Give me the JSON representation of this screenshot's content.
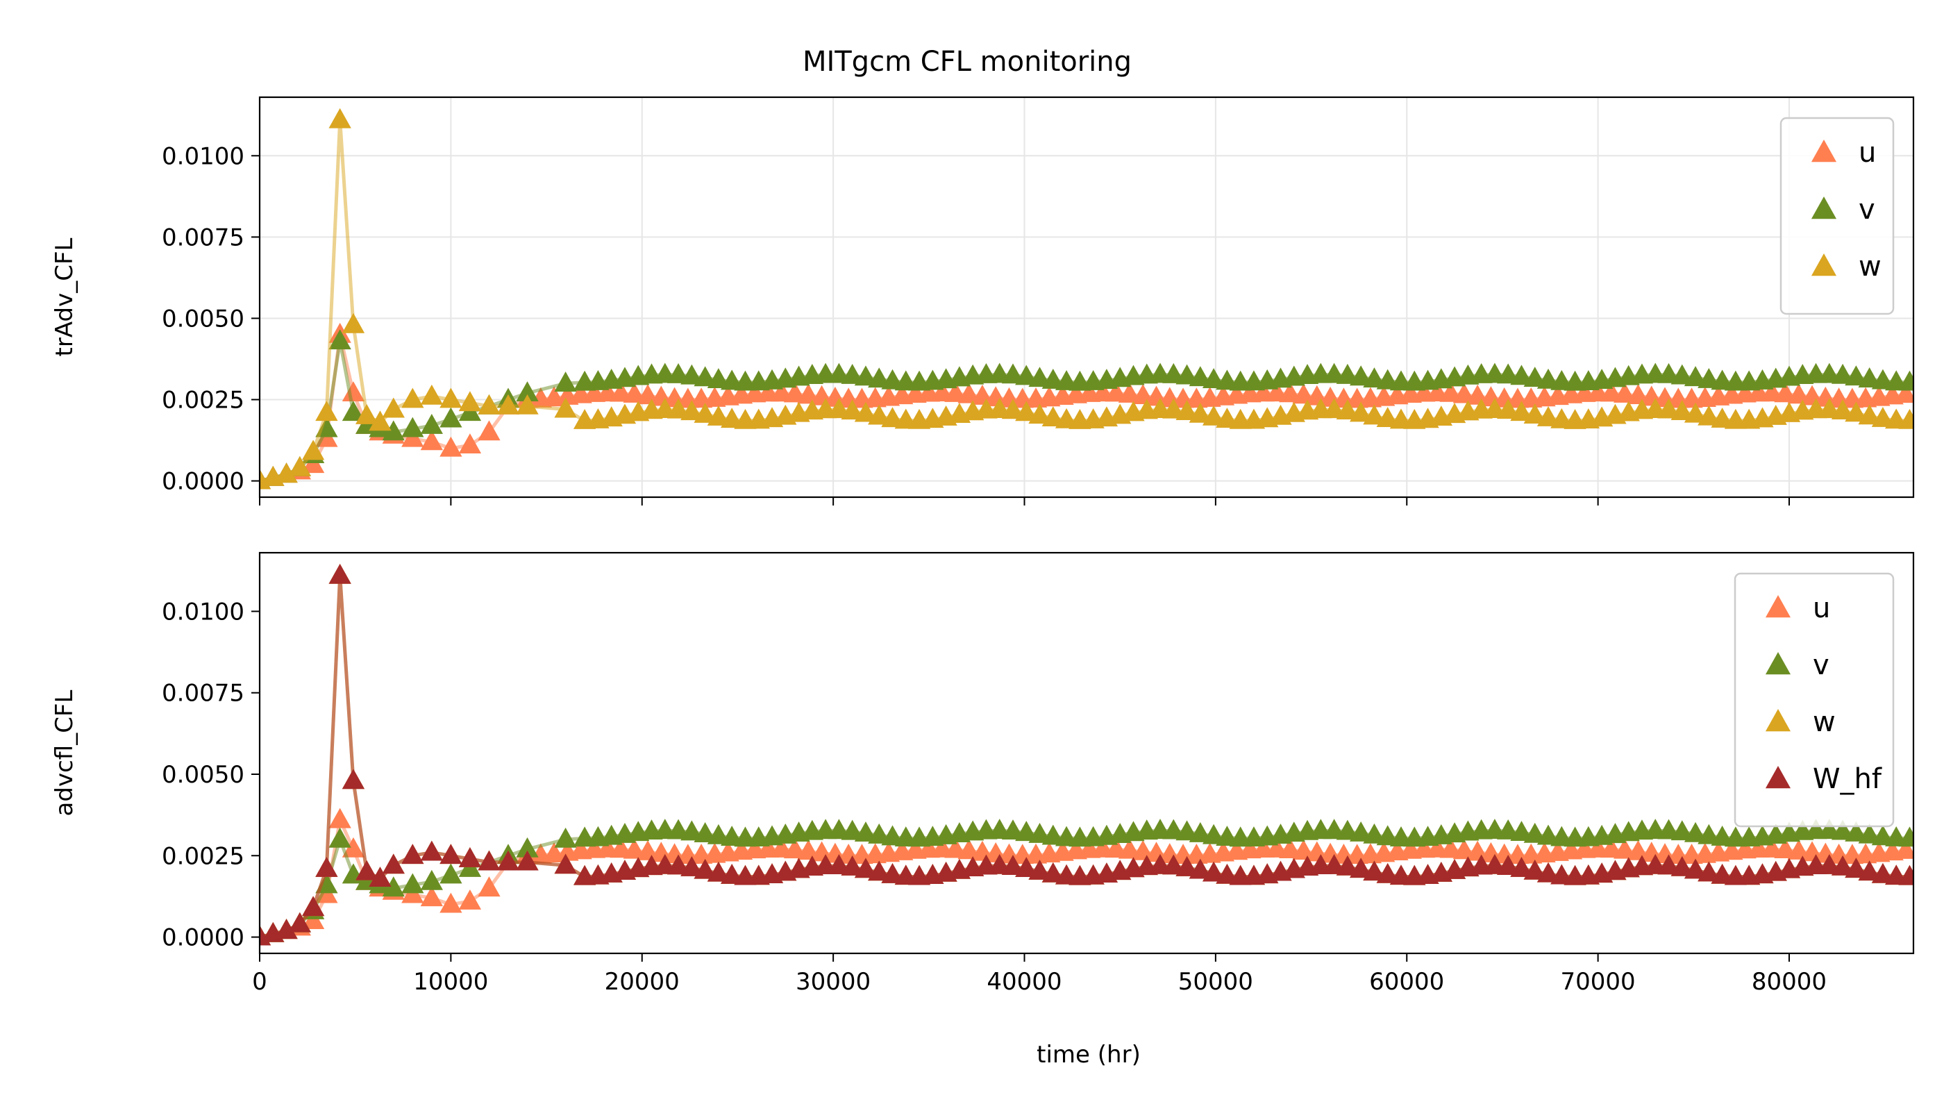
{
  "title": "MITgcm CFL monitoring",
  "xlabel": "time (hr)",
  "colors": {
    "u": "#ff7f50",
    "v": "#6b8e23",
    "w": "#daa520",
    "W_hf": "#a52a2a",
    "grid": "#e6e6e6"
  },
  "chart_data": [
    {
      "type": "line",
      "ylabel": "trAdv_CFL",
      "xlim": [
        0,
        86500
      ],
      "ylim": [
        -0.0005,
        0.0118
      ],
      "xticks": [
        0,
        10000,
        20000,
        30000,
        40000,
        50000,
        60000,
        70000,
        80000
      ],
      "yticks": [
        0.0,
        0.0025,
        0.005,
        0.0075,
        0.01
      ],
      "ytick_labels": [
        "0.0000",
        "0.0025",
        "0.0050",
        "0.0075",
        "0.0100"
      ],
      "grid": true,
      "legend_position": "top-right",
      "series": [
        {
          "name": "u",
          "color": "#ff7f50",
          "points": [
            [
              0,
              0
            ],
            [
              700,
              0.0001
            ],
            [
              1400,
              0.0002
            ],
            [
              2100,
              0.0003
            ],
            [
              2800,
              0.0005
            ],
            [
              3500,
              0.0013
            ],
            [
              4200,
              0.0045
            ],
            [
              4900,
              0.0027
            ],
            [
              5600,
              0.0017
            ],
            [
              6300,
              0.0015
            ],
            [
              7000,
              0.0014
            ],
            [
              8000,
              0.0013
            ],
            [
              9000,
              0.0012
            ],
            [
              10000,
              0.001
            ],
            [
              11000,
              0.0011
            ],
            [
              12000,
              0.0015
            ],
            [
              13000,
              0.0023
            ],
            [
              14000,
              0.0026
            ],
            [
              17000,
              0.0027
            ],
            [
              86500,
              0.0027
            ]
          ],
          "oscillation": {
            "mean": 0.0026,
            "amplitude": 0.0001,
            "period_hr": 8640,
            "start_hr": 14000
          }
        },
        {
          "name": "v",
          "color": "#6b8e23",
          "points": [
            [
              0,
              0
            ],
            [
              700,
              0.0001
            ],
            [
              1400,
              0.0002
            ],
            [
              2100,
              0.0004
            ],
            [
              2800,
              0.0008
            ],
            [
              3500,
              0.0016
            ],
            [
              4200,
              0.0043
            ],
            [
              4900,
              0.0021
            ],
            [
              5600,
              0.0017
            ],
            [
              6300,
              0.0016
            ],
            [
              7000,
              0.0015
            ],
            [
              8000,
              0.0016
            ],
            [
              9000,
              0.0017
            ],
            [
              10000,
              0.0019
            ],
            [
              11000,
              0.0021
            ],
            [
              12000,
              0.0023
            ],
            [
              13000,
              0.0025
            ],
            [
              14000,
              0.0027
            ],
            [
              16000,
              0.003
            ],
            [
              18000,
              0.0031
            ],
            [
              86500,
              0.0031
            ]
          ],
          "oscillation": {
            "mean": 0.00315,
            "amplitude": 0.00012,
            "period_hr": 8640,
            "start_hr": 17000
          }
        },
        {
          "name": "w",
          "color": "#daa520",
          "points": [
            [
              0,
              0
            ],
            [
              700,
              0.0001
            ],
            [
              1400,
              0.0002
            ],
            [
              2100,
              0.0004
            ],
            [
              2800,
              0.0009
            ],
            [
              3500,
              0.0021
            ],
            [
              4200,
              0.0111
            ],
            [
              4900,
              0.0048
            ],
            [
              5600,
              0.002
            ],
            [
              6300,
              0.0018
            ],
            [
              7000,
              0.0022
            ],
            [
              8000,
              0.0025
            ],
            [
              9000,
              0.0026
            ],
            [
              10000,
              0.0025
            ],
            [
              11000,
              0.0024
            ],
            [
              12000,
              0.0023
            ],
            [
              13000,
              0.0023
            ],
            [
              14000,
              0.0023
            ],
            [
              16000,
              0.0022
            ],
            [
              18000,
              0.0021
            ],
            [
              86500,
              0.0021
            ]
          ],
          "oscillation": {
            "mean": 0.00202,
            "amplitude": 0.00017,
            "period_hr": 8640,
            "start_hr": 17000
          }
        }
      ]
    },
    {
      "type": "line",
      "ylabel": "advcfl_CFL",
      "xlim": [
        0,
        86500
      ],
      "ylim": [
        -0.0005,
        0.0118
      ],
      "xticks": [
        0,
        10000,
        20000,
        30000,
        40000,
        50000,
        60000,
        70000,
        80000
      ],
      "xtick_labels": [
        "0",
        "10000",
        "20000",
        "30000",
        "40000",
        "50000",
        "60000",
        "70000",
        "80000"
      ],
      "yticks": [
        0.0,
        0.0025,
        0.005,
        0.0075,
        0.01
      ],
      "ytick_labels": [
        "0.0000",
        "0.0025",
        "0.0050",
        "0.0075",
        "0.0100"
      ],
      "grid": false,
      "legend_position": "top-right",
      "series": [
        {
          "name": "u",
          "color": "#ff7f50",
          "points": [
            [
              0,
              0
            ],
            [
              700,
              0.0001
            ],
            [
              1400,
              0.0002
            ],
            [
              2100,
              0.0003
            ],
            [
              2800,
              0.0005
            ],
            [
              3500,
              0.0013
            ],
            [
              4200,
              0.0036
            ],
            [
              4900,
              0.0027
            ],
            [
              5600,
              0.0017
            ],
            [
              6300,
              0.0015
            ],
            [
              7000,
              0.0014
            ],
            [
              8000,
              0.0013
            ],
            [
              9000,
              0.0012
            ],
            [
              10000,
              0.001
            ],
            [
              11000,
              0.0011
            ],
            [
              12000,
              0.0015
            ],
            [
              13000,
              0.0023
            ],
            [
              14000,
              0.0026
            ],
            [
              17000,
              0.0027
            ],
            [
              86500,
              0.0027
            ]
          ],
          "oscillation": {
            "mean": 0.0026,
            "amplitude": 0.0001,
            "period_hr": 8640,
            "start_hr": 14000
          }
        },
        {
          "name": "v",
          "color": "#6b8e23",
          "points": [
            [
              0,
              0
            ],
            [
              700,
              0.0001
            ],
            [
              1400,
              0.0002
            ],
            [
              2100,
              0.0004
            ],
            [
              2800,
              0.0008
            ],
            [
              3500,
              0.0016
            ],
            [
              4200,
              0.003
            ],
            [
              4900,
              0.0019
            ],
            [
              5600,
              0.0017
            ],
            [
              6300,
              0.0016
            ],
            [
              7000,
              0.0015
            ],
            [
              8000,
              0.0016
            ],
            [
              9000,
              0.0017
            ],
            [
              10000,
              0.0019
            ],
            [
              11000,
              0.0021
            ],
            [
              12000,
              0.0023
            ],
            [
              13000,
              0.0025
            ],
            [
              14000,
              0.0027
            ],
            [
              16000,
              0.003
            ],
            [
              18000,
              0.0031
            ],
            [
              86500,
              0.0031
            ]
          ],
          "oscillation": {
            "mean": 0.00315,
            "amplitude": 0.00012,
            "period_hr": 8640,
            "start_hr": 17000
          }
        },
        {
          "name": "w",
          "color": "#daa520",
          "points": [
            [
              0,
              0
            ],
            [
              700,
              0.0001
            ],
            [
              1400,
              0.0002
            ],
            [
              2100,
              0.0004
            ],
            [
              2800,
              0.0009
            ],
            [
              3500,
              0.0021
            ],
            [
              4200,
              0.0111
            ],
            [
              4900,
              0.0048
            ],
            [
              5600,
              0.002
            ],
            [
              6300,
              0.0018
            ],
            [
              7000,
              0.0022
            ],
            [
              8000,
              0.0025
            ],
            [
              9000,
              0.0026
            ],
            [
              10000,
              0.0025
            ],
            [
              11000,
              0.0024
            ],
            [
              12000,
              0.0023
            ],
            [
              13000,
              0.0023
            ],
            [
              14000,
              0.0023
            ],
            [
              16000,
              0.0022
            ],
            [
              18000,
              0.0021
            ],
            [
              86500,
              0.0021
            ]
          ],
          "oscillation": {
            "mean": 0.00202,
            "amplitude": 0.00017,
            "period_hr": 8640,
            "start_hr": 17000
          }
        },
        {
          "name": "W_hf",
          "color": "#a52a2a",
          "points": [
            [
              0,
              0
            ],
            [
              700,
              0.0001
            ],
            [
              1400,
              0.0002
            ],
            [
              2100,
              0.0004
            ],
            [
              2800,
              0.0009
            ],
            [
              3500,
              0.0021
            ],
            [
              4200,
              0.0111
            ],
            [
              4900,
              0.0048
            ],
            [
              5600,
              0.002
            ],
            [
              6300,
              0.0018
            ],
            [
              7000,
              0.0022
            ],
            [
              8000,
              0.0025
            ],
            [
              9000,
              0.0026
            ],
            [
              10000,
              0.0025
            ],
            [
              11000,
              0.0024
            ],
            [
              12000,
              0.0023
            ],
            [
              13000,
              0.0023
            ],
            [
              14000,
              0.0023
            ],
            [
              16000,
              0.0022
            ],
            [
              18000,
              0.0021
            ],
            [
              86500,
              0.0021
            ]
          ],
          "oscillation": {
            "mean": 0.00202,
            "amplitude": 0.00017,
            "period_hr": 8640,
            "start_hr": 17000
          }
        }
      ]
    }
  ]
}
